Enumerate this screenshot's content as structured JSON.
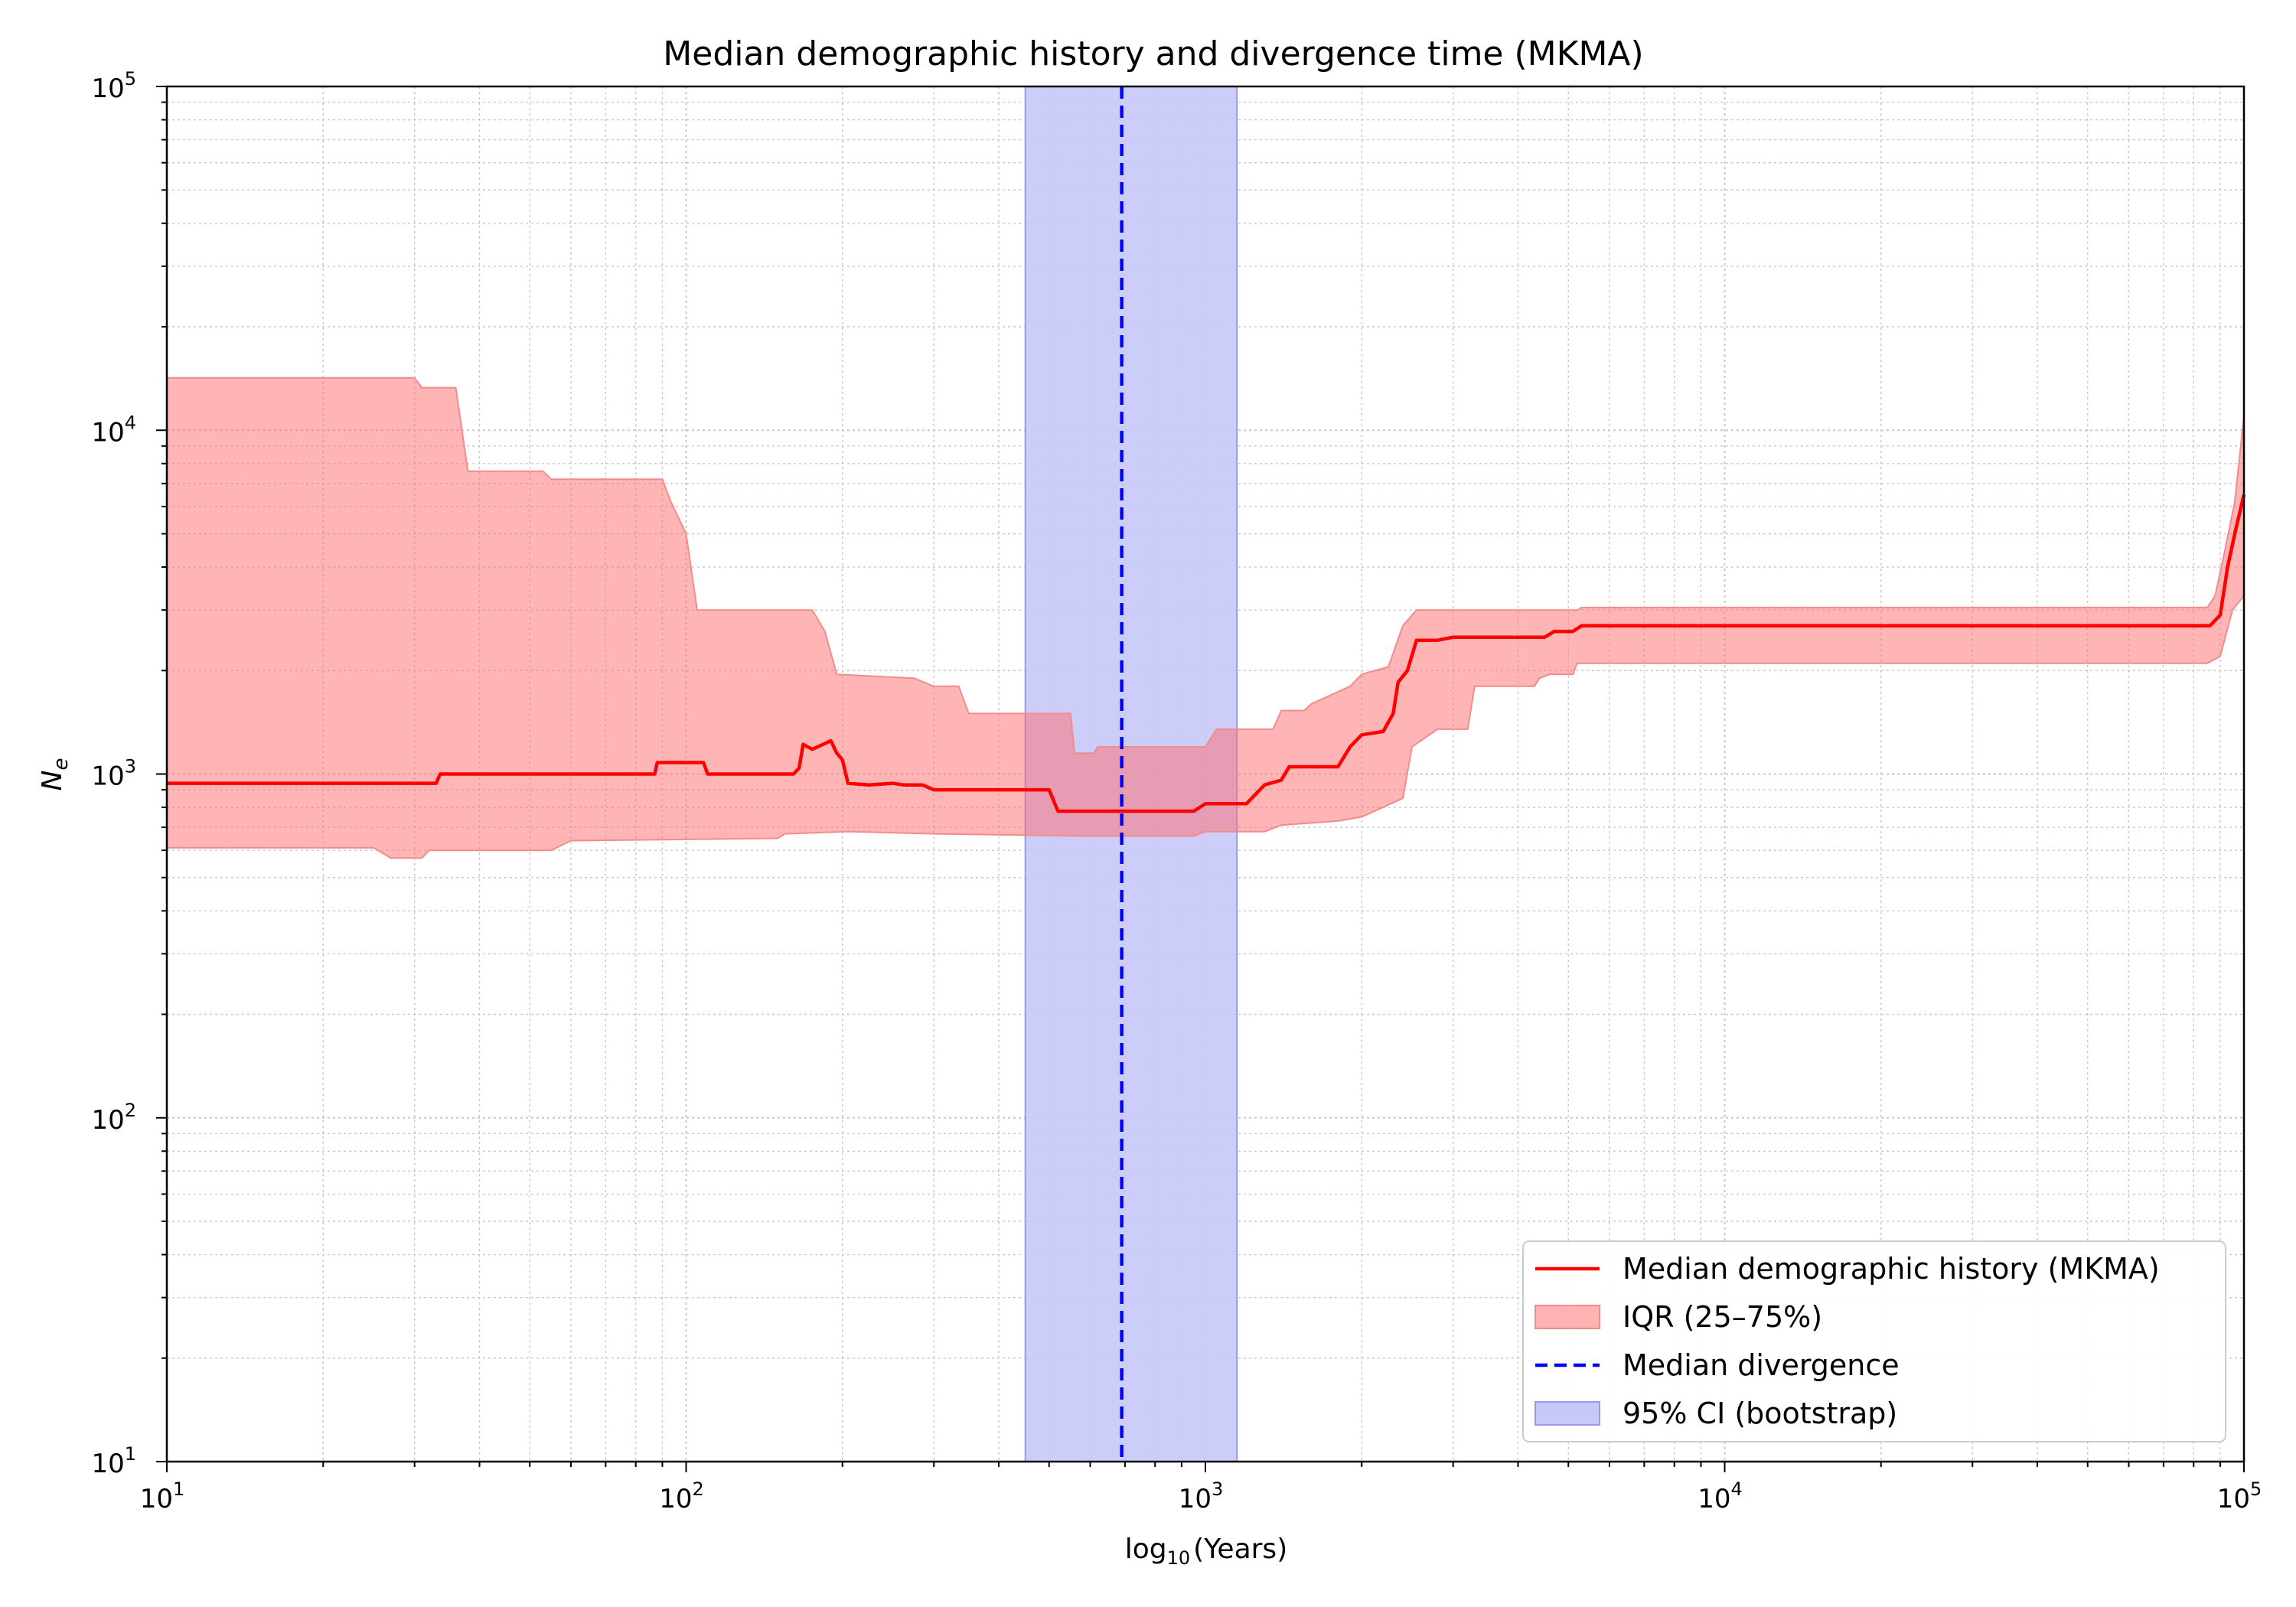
{
  "chart_data": {
    "type": "line",
    "title": "Median demographic history and divergence time (MKMA)",
    "xlabel": "log",
    "xlabel_sub": "10",
    "xlabel_rest": "(Years)",
    "ylabel": "N",
    "ylabel_sub": "e",
    "xscale": "log",
    "yscale": "log",
    "xlim": [
      10,
      100000
    ],
    "ylim": [
      10,
      100000
    ],
    "grid": true,
    "legend_placement": "lower-right",
    "x_ticks": [
      {
        "base": "10",
        "exp": "1"
      },
      {
        "base": "10",
        "exp": "2"
      },
      {
        "base": "10",
        "exp": "3"
      },
      {
        "base": "10",
        "exp": "4"
      },
      {
        "base": "10",
        "exp": "5"
      }
    ],
    "y_ticks": [
      {
        "base": "10",
        "exp": "1"
      },
      {
        "base": "10",
        "exp": "2"
      },
      {
        "base": "10",
        "exp": "3"
      },
      {
        "base": "10",
        "exp": "4"
      },
      {
        "base": "10",
        "exp": "5"
      }
    ],
    "colors": {
      "median_line": "#ff0000",
      "iqr_fill": "#ffb3b3",
      "iqr_edge": "#f28c8c",
      "divergence_line": "#0000ff",
      "ci_fill": "#c8c8f8",
      "ci_edge": "#9999ee",
      "grid": "#c8c8c8"
    },
    "legend": [
      {
        "label": "Median demographic history (MKMA)",
        "kind": "line"
      },
      {
        "label": "IQR (25–75%)",
        "kind": "patch-red"
      },
      {
        "label": "Median divergence",
        "kind": "dashed"
      },
      {
        "label": "95% CI (bootstrap)",
        "kind": "patch-blue"
      }
    ],
    "median_series": {
      "name": "Median demographic history (MKMA)",
      "points": [
        [
          10,
          940
        ],
        [
          33,
          940
        ],
        [
          33.6,
          1000
        ],
        [
          87,
          1000
        ],
        [
          88,
          1080
        ],
        [
          108,
          1080
        ],
        [
          110,
          1000
        ],
        [
          161,
          1000
        ],
        [
          165,
          1040
        ],
        [
          168,
          1220
        ],
        [
          175,
          1180
        ],
        [
          190,
          1250
        ],
        [
          195,
          1150
        ],
        [
          200,
          1100
        ],
        [
          205,
          940
        ],
        [
          225,
          930
        ],
        [
          250,
          940
        ],
        [
          262,
          930
        ],
        [
          285,
          930
        ],
        [
          300,
          900
        ],
        [
          500,
          900
        ],
        [
          520,
          780
        ],
        [
          950,
          780
        ],
        [
          1000,
          820
        ],
        [
          1200,
          820
        ],
        [
          1300,
          930
        ],
        [
          1400,
          960
        ],
        [
          1450,
          1050
        ],
        [
          1800,
          1050
        ],
        [
          1900,
          1200
        ],
        [
          2000,
          1300
        ],
        [
          2200,
          1330
        ],
        [
          2300,
          1500
        ],
        [
          2350,
          1850
        ],
        [
          2450,
          2000
        ],
        [
          2550,
          2450
        ],
        [
          2800,
          2450
        ],
        [
          3000,
          2500
        ],
        [
          4500,
          2500
        ],
        [
          4700,
          2600
        ],
        [
          5100,
          2600
        ],
        [
          5300,
          2700
        ],
        [
          80000,
          2700
        ],
        [
          86000,
          2700
        ],
        [
          90000,
          2900
        ],
        [
          93000,
          4000
        ],
        [
          96000,
          5000
        ],
        [
          100000,
          6500
        ]
      ]
    },
    "iqr": {
      "name": "IQR (25–75%)",
      "upper": [
        [
          10,
          14200
        ],
        [
          30,
          14200
        ],
        [
          31,
          13300
        ],
        [
          36,
          13300
        ],
        [
          38,
          7600
        ],
        [
          53,
          7600
        ],
        [
          55,
          7200
        ],
        [
          90,
          7200
        ],
        [
          93,
          6300
        ],
        [
          100,
          5000
        ],
        [
          105,
          3000
        ],
        [
          175,
          3000
        ],
        [
          185,
          2600
        ],
        [
          195,
          1950
        ],
        [
          275,
          1900
        ],
        [
          300,
          1800
        ],
        [
          335,
          1800
        ],
        [
          350,
          1500
        ],
        [
          550,
          1500
        ],
        [
          560,
          1150
        ],
        [
          610,
          1150
        ],
        [
          620,
          1200
        ],
        [
          1000,
          1200
        ],
        [
          1050,
          1350
        ],
        [
          1350,
          1350
        ],
        [
          1400,
          1530
        ],
        [
          1550,
          1530
        ],
        [
          1600,
          1600
        ],
        [
          1900,
          1800
        ],
        [
          2000,
          1950
        ],
        [
          2250,
          2050
        ],
        [
          2400,
          2700
        ],
        [
          2550,
          3000
        ],
        [
          5200,
          3000
        ],
        [
          5300,
          3050
        ],
        [
          85000,
          3050
        ],
        [
          88000,
          3300
        ],
        [
          92000,
          4500
        ],
        [
          96000,
          6200
        ],
        [
          100000,
          11000
        ]
      ],
      "lower": [
        [
          10,
          610
        ],
        [
          25,
          610
        ],
        [
          27,
          570
        ],
        [
          31,
          570
        ],
        [
          32,
          600
        ],
        [
          55,
          600
        ],
        [
          60,
          640
        ],
        [
          150,
          650
        ],
        [
          155,
          670
        ],
        [
          205,
          680
        ],
        [
          300,
          670
        ],
        [
          600,
          660
        ],
        [
          950,
          660
        ],
        [
          1000,
          680
        ],
        [
          1300,
          680
        ],
        [
          1400,
          710
        ],
        [
          1800,
          730
        ],
        [
          2000,
          750
        ],
        [
          2400,
          850
        ],
        [
          2500,
          1200
        ],
        [
          2800,
          1350
        ],
        [
          3200,
          1350
        ],
        [
          3300,
          1800
        ],
        [
          4300,
          1800
        ],
        [
          4400,
          1900
        ],
        [
          4600,
          1950
        ],
        [
          5100,
          1950
        ],
        [
          5200,
          2100
        ],
        [
          85000,
          2100
        ],
        [
          90000,
          2200
        ],
        [
          95000,
          3000
        ],
        [
          100000,
          3300
        ]
      ]
    },
    "divergence": {
      "name": "Median divergence",
      "median": 690,
      "ci_low": 450,
      "ci_high": 1150,
      "ci_name": "95% CI (bootstrap)"
    }
  }
}
